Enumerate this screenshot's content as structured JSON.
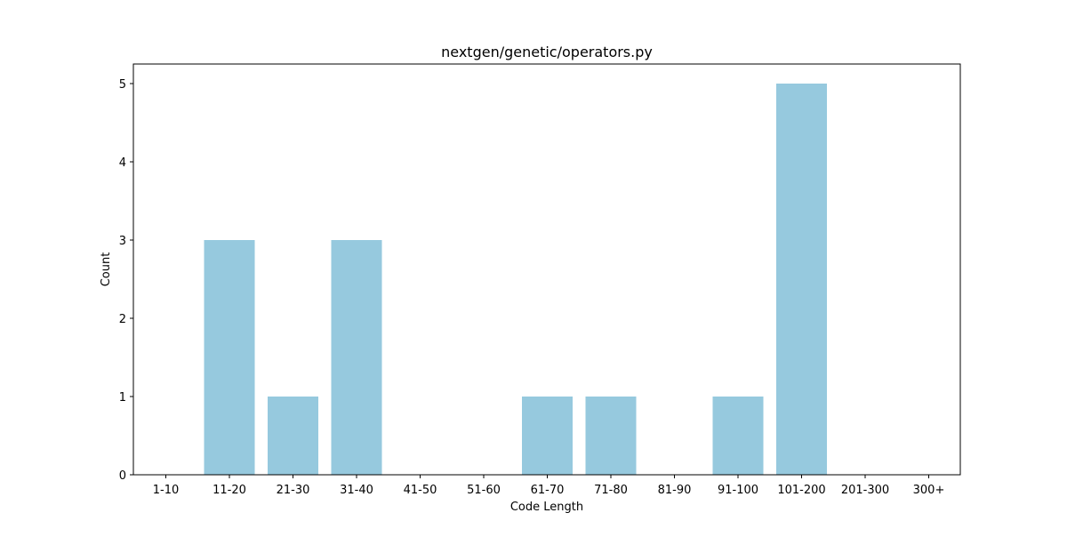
{
  "chart_data": {
    "type": "bar",
    "title": "nextgen/genetic/operators.py",
    "xlabel": "Code Length",
    "ylabel": "Count",
    "categories": [
      "1-10",
      "11-20",
      "21-30",
      "31-40",
      "41-50",
      "51-60",
      "61-70",
      "71-80",
      "81-90",
      "91-100",
      "101-200",
      "201-300",
      "300+"
    ],
    "values": [
      0,
      3,
      1,
      3,
      0,
      0,
      1,
      1,
      0,
      1,
      5,
      0,
      0
    ],
    "ylim": [
      0,
      5.25
    ],
    "yticks": [
      0,
      1,
      2,
      3,
      4,
      5
    ],
    "bar_color": "#96c9de",
    "grid": false,
    "legend": "none"
  }
}
